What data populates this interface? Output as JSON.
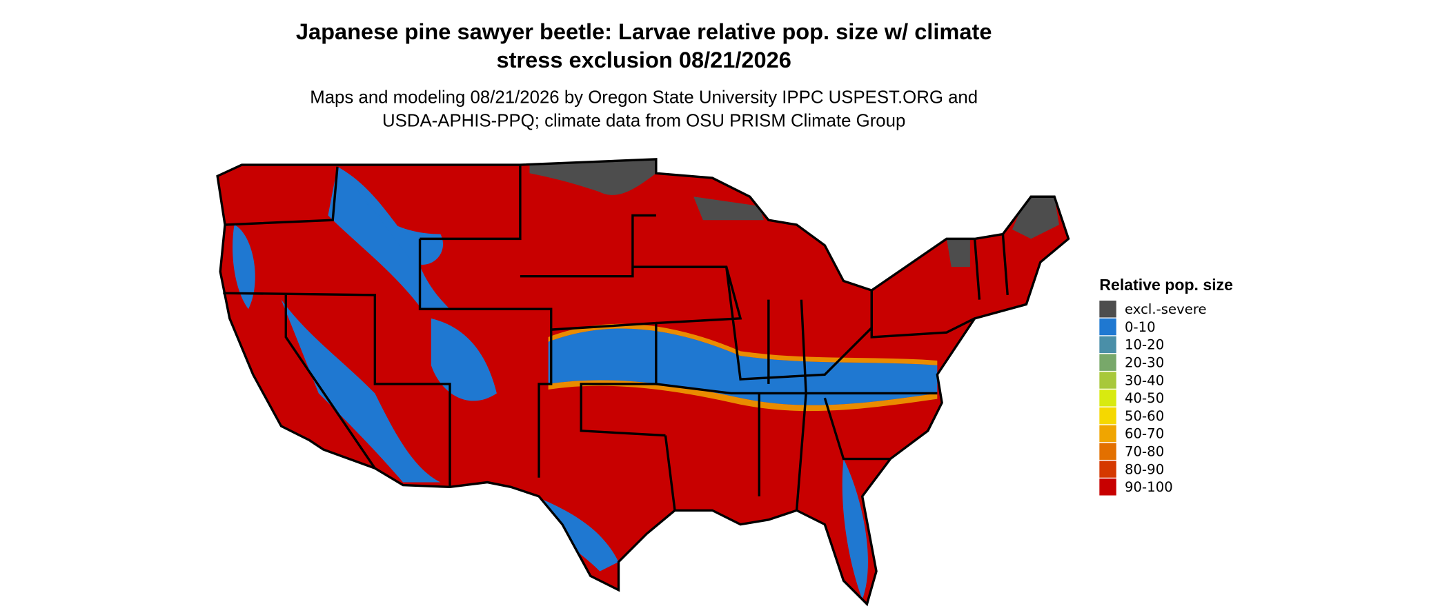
{
  "title": "Japanese pine sawyer beetle: Larvae relative pop. size w/ climate stress exclusion 08/21/2026",
  "subtitle": "Maps and modeling 08/21/2026 by Oregon State University IPPC USPEST.ORG and USDA-APHIS-PPQ; climate data from OSU PRISM Climate Group",
  "legend": {
    "title": "Relative pop. size",
    "items": [
      {
        "label": "excl.-severe",
        "color": "#4d4d4d"
      },
      {
        "label": "0-10",
        "color": "#1f78d1"
      },
      {
        "label": "10-20",
        "color": "#4a8fa8"
      },
      {
        "label": "20-30",
        "color": "#78a86a"
      },
      {
        "label": "30-40",
        "color": "#a8c83a"
      },
      {
        "label": "40-50",
        "color": "#d8ea10"
      },
      {
        "label": "50-60",
        "color": "#f5d800"
      },
      {
        "label": "60-70",
        "color": "#f0a500"
      },
      {
        "label": "70-80",
        "color": "#e37000"
      },
      {
        "label": "80-90",
        "color": "#d53800"
      },
      {
        "label": "90-100",
        "color": "#c80000"
      }
    ]
  }
}
